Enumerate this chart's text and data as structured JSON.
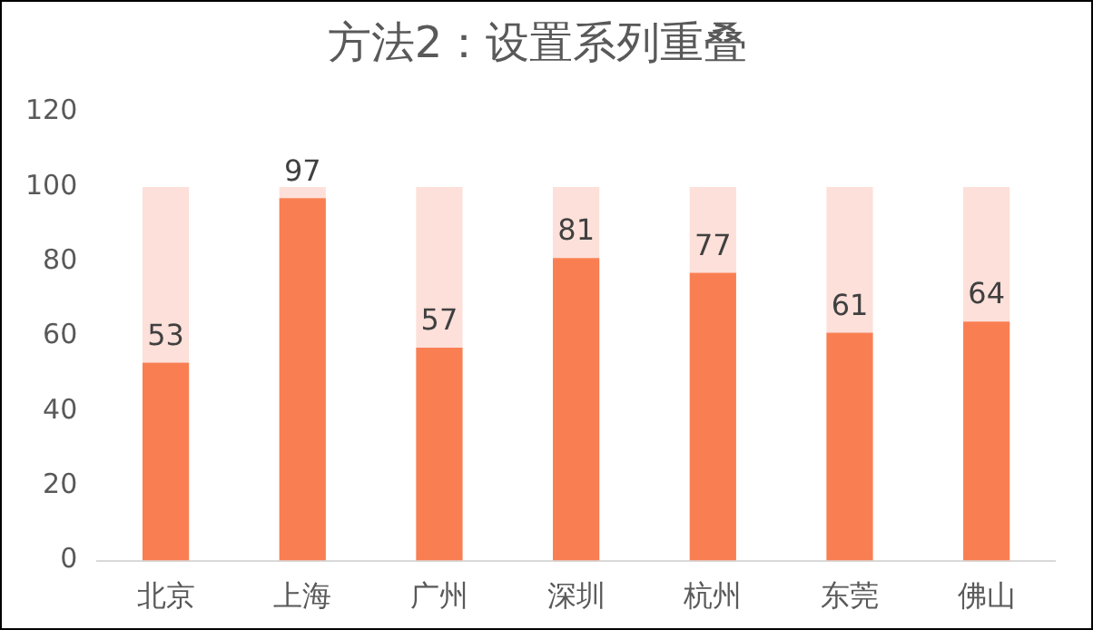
{
  "chart_data": {
    "type": "bar",
    "title": "方法2：设置系列重叠",
    "categories": [
      "北京",
      "上海",
      "广州",
      "深圳",
      "杭州",
      "东莞",
      "佛山"
    ],
    "series": [
      {
        "color": "#f97f52",
        "values": [
          53,
          97,
          57,
          81,
          77,
          61,
          64
        ],
        "value_labels": [
          "53",
          "97",
          "57",
          "81",
          "77",
          "61",
          "64"
        ]
      },
      {
        "color": "#fde0d9",
        "values": [
          47,
          3,
          43,
          19,
          23,
          39,
          36
        ]
      }
    ],
    "stacked": true,
    "ylim": [
      0,
      120
    ],
    "yticks": [
      0,
      20,
      40,
      60,
      80,
      100,
      120
    ]
  }
}
